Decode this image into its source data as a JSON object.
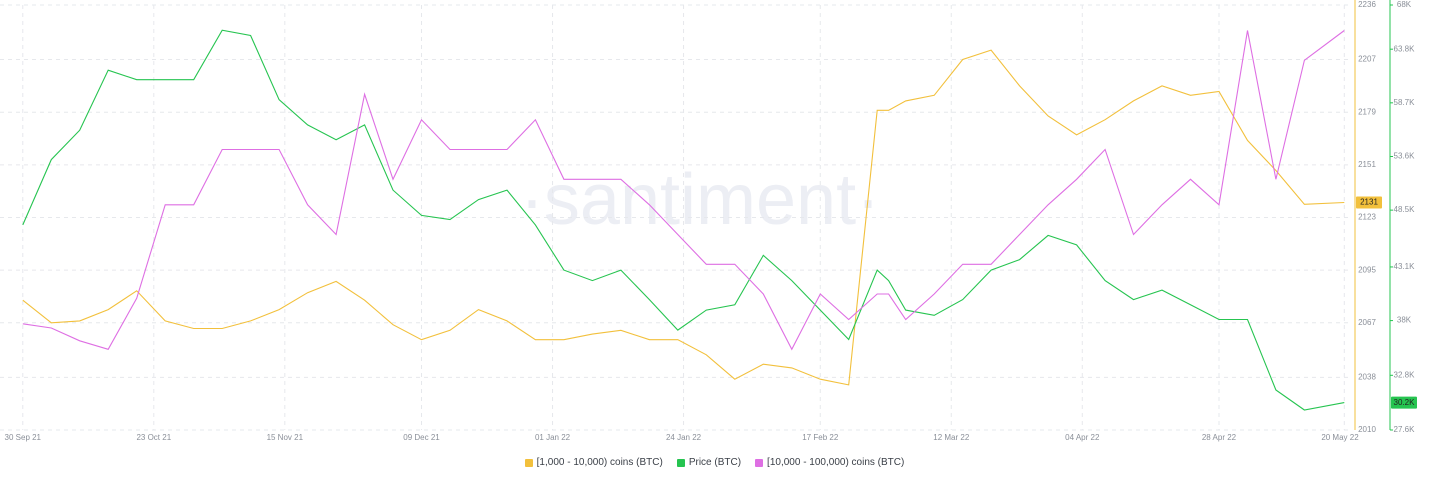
{
  "chart_data": {
    "type": "line",
    "watermark": "·santiment·",
    "x": [
      "2021-09-30",
      "2021-10-05",
      "2021-10-10",
      "2021-10-15",
      "2021-10-20",
      "2021-10-25",
      "2021-10-30",
      "2021-11-04",
      "2021-11-09",
      "2021-11-14",
      "2021-11-19",
      "2021-11-24",
      "2021-11-29",
      "2021-12-04",
      "2021-12-09",
      "2021-12-14",
      "2021-12-19",
      "2021-12-24",
      "2021-12-29",
      "2022-01-03",
      "2022-01-08",
      "2022-01-13",
      "2022-01-18",
      "2022-01-23",
      "2022-01-28",
      "2022-02-02",
      "2022-02-07",
      "2022-02-12",
      "2022-02-17",
      "2022-02-22",
      "2022-02-27",
      "2022-03-01",
      "2022-03-04",
      "2022-03-09",
      "2022-03-14",
      "2022-03-19",
      "2022-03-24",
      "2022-03-29",
      "2022-04-03",
      "2022-04-08",
      "2022-04-13",
      "2022-04-18",
      "2022-04-23",
      "2022-04-28",
      "2022-05-03",
      "2022-05-08",
      "2022-05-13",
      "2022-05-20"
    ],
    "xlim": [
      "2021-09-26",
      "2022-05-21"
    ],
    "xticks": [
      {
        "value": "2021-09-30",
        "label": "30 Sep 21"
      },
      {
        "value": "2021-10-23",
        "label": "23 Oct 21"
      },
      {
        "value": "2021-11-15",
        "label": "15 Nov 21"
      },
      {
        "value": "2021-12-09",
        "label": "09 Dec 21"
      },
      {
        "value": "2022-01-01",
        "label": "01 Jan 22"
      },
      {
        "value": "2022-01-24",
        "label": "24 Jan 22"
      },
      {
        "value": "2022-02-17",
        "label": "17 Feb 22"
      },
      {
        "value": "2022-03-12",
        "label": "12 Mar 22"
      },
      {
        "value": "2022-04-04",
        "label": "04 Apr 22"
      },
      {
        "value": "2022-04-28",
        "label": "28 Apr 22"
      },
      {
        "value": "2022-05-20",
        "label": "20 May 22"
      }
    ],
    "ylim": [
      2010,
      2236
    ],
    "yticks": [
      2236,
      2207,
      2179,
      2151,
      2123,
      2095,
      2067,
      2038,
      2010
    ],
    "y2lim": [
      27.6,
      68
    ],
    "y2ticks": [
      {
        "value": 68,
        "label": "68K"
      },
      {
        "value": 63.8,
        "label": "63.8K"
      },
      {
        "value": 58.7,
        "label": "58.7K"
      },
      {
        "value": 53.6,
        "label": "53.6K"
      },
      {
        "value": 48.5,
        "label": "48.5K"
      },
      {
        "value": 43.1,
        "label": "43.1K"
      },
      {
        "value": 38,
        "label": "38K"
      },
      {
        "value": 32.8,
        "label": "32.8K"
      },
      {
        "value": 27.6,
        "label": "27.6K"
      }
    ],
    "y3lim": [
      0,
      100
    ],
    "grid": true,
    "series": [
      {
        "name": "[1,000 - 10,000) coins (BTC)",
        "color": "#f2c03c",
        "axis": "y",
        "values": [
          2079,
          2067,
          2068,
          2074,
          2084,
          2068,
          2064,
          2064,
          2068,
          2074,
          2083,
          2089,
          2079,
          2066,
          2058,
          2063,
          2074,
          2068,
          2058,
          2058,
          2061,
          2063,
          2058,
          2058,
          2050,
          2037,
          2045,
          2043,
          2037,
          2034,
          2180,
          2180,
          2185,
          2188,
          2207,
          2212,
          2193,
          2177,
          2167,
          2175,
          2185,
          2193,
          2188,
          2190,
          2164,
          2148,
          2130,
          2131
        ]
      },
      {
        "name": "Price (BTC)",
        "color": "#26c450",
        "axis": "y2",
        "values": [
          47.1,
          53.3,
          56.1,
          61.8,
          60.9,
          60.9,
          60.9,
          65.6,
          65.1,
          59.0,
          56.6,
          55.2,
          56.6,
          50.4,
          48.0,
          47.6,
          49.5,
          50.4,
          47.1,
          42.8,
          41.8,
          42.8,
          40.0,
          37.1,
          39.0,
          39.5,
          44.2,
          41.8,
          39.0,
          36.2,
          42.8,
          41.8,
          39.0,
          38.5,
          40.0,
          42.8,
          43.8,
          46.1,
          45.2,
          41.8,
          40.0,
          40.9,
          39.5,
          38.1,
          38.1,
          31.4,
          29.5,
          30.2
        ],
        "value_labels": [
          null,
          null,
          null,
          null,
          null,
          null,
          null,
          null,
          null,
          null,
          null,
          null,
          null,
          null,
          null,
          null,
          null,
          null,
          null,
          null,
          null,
          null,
          null,
          null,
          null,
          null,
          null,
          null,
          null,
          null,
          null,
          null,
          null,
          null,
          null,
          null,
          null,
          null,
          null,
          null,
          null,
          null,
          null,
          null,
          null,
          null,
          null,
          "30.2K"
        ]
      },
      {
        "name": "[10,000 - 100,000) coins (BTC)",
        "color": "#de6fe3",
        "axis": "y3",
        "values": [
          25,
          24,
          21,
          19,
          31,
          53,
          53,
          66,
          66,
          66,
          53,
          46,
          79,
          59,
          73,
          66,
          66,
          66,
          73,
          59,
          59,
          59,
          53,
          46,
          39,
          39,
          32,
          19,
          32,
          26,
          32,
          32,
          26,
          32,
          39,
          39,
          46,
          53,
          59,
          66,
          46,
          53,
          59,
          53,
          94,
          59,
          87,
          94
        ]
      }
    ]
  }
}
